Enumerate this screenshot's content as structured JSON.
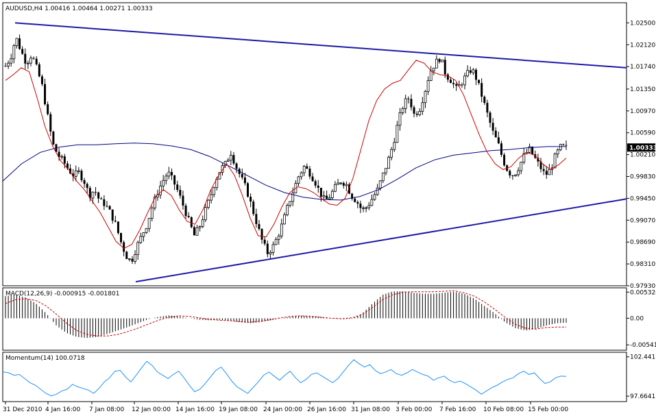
{
  "chart_data": [
    {
      "type": "candlestick",
      "symbol_header": "AUDUSD,H4  1.00416 1.00464 1.00271 1.00333",
      "last_price": 1.00333,
      "ylim": [
        0.9793,
        1.0285
      ],
      "y_ticks": [
        "1.02500",
        "1.02120",
        "1.01740",
        "1.01350",
        "1.00970",
        "1.00590",
        "1.00210",
        "0.99830",
        "0.99450",
        "0.99070",
        "0.98690",
        "0.98310",
        "0.97930"
      ],
      "x_ticks": [
        "31 Dec 2010",
        "4 Jan 16:00",
        "7 Jan 08:00",
        "12 Jan 00:00",
        "14 Jan 16:00",
        "19 Jan 08:00",
        "24 Jan 00:00",
        "26 Jan 16:00",
        "31 Jan 08:00",
        "3 Feb 00:00",
        "7 Feb 16:00",
        "10 Feb 08:00",
        "15 Feb 00:00"
      ],
      "close_path": [
        1.0175,
        1.019,
        1.0225,
        1.02,
        1.018,
        1.0195,
        1.017,
        1.014,
        1.009,
        1.004,
        1.002,
        1.001,
        0.9995,
        0.9985,
        0.999,
        0.9975,
        0.995,
        0.996,
        0.994,
        0.9935,
        0.992,
        0.99,
        0.987,
        0.9845,
        0.9835,
        0.986,
        0.988,
        0.99,
        0.993,
        0.9955,
        0.9975,
        0.999,
        0.9975,
        0.9955,
        0.993,
        0.9905,
        0.988,
        0.9895,
        0.992,
        0.9945,
        0.9975,
        0.9995,
        1.0005,
        1.0025,
        1.0,
        0.998,
        0.996,
        0.993,
        0.99,
        0.987,
        0.985,
        0.986,
        0.988,
        0.9905,
        0.9935,
        0.996,
        0.9985,
        1.0,
        0.999,
        0.9975,
        0.9955,
        0.994,
        0.995,
        0.9965,
        0.9975,
        0.997,
        0.995,
        0.994,
        0.9925,
        0.993,
        0.9945,
        0.996,
        0.9985,
        1.001,
        1.004,
        1.008,
        1.011,
        1.012,
        1.009,
        1.01,
        1.013,
        1.0165,
        1.018,
        1.019,
        1.016,
        1.015,
        1.0135,
        1.0145,
        1.016,
        1.017,
        1.015,
        1.012,
        1.009,
        1.006,
        1.004,
        1.001,
        0.999,
        0.9985,
        1.0,
        1.002,
        1.003,
        1.0015,
        1.0,
        0.9985,
        0.9995,
        1.002,
        1.0035,
        1.0033
      ],
      "ma_fast_path": [
        1.015,
        1.016,
        1.0172,
        1.0165,
        1.012,
        1.007,
        1.0035,
        1.001,
        0.9995,
        0.9975,
        0.996,
        0.994,
        0.992,
        0.9895,
        0.987,
        0.9858,
        0.9865,
        0.989,
        0.992,
        0.9948,
        0.996,
        0.995,
        0.9925,
        0.9905,
        0.99,
        0.9925,
        0.996,
        0.9985,
        1.0005,
        0.9985,
        0.995,
        0.991,
        0.988,
        0.9878,
        0.99,
        0.993,
        0.9955,
        0.9965,
        0.9962,
        0.9955,
        0.9945,
        0.9935,
        0.9933,
        0.9945,
        0.998,
        1.003,
        1.008,
        1.0115,
        1.0135,
        1.0145,
        1.015,
        1.0168,
        1.0185,
        1.018,
        1.0165,
        1.016,
        1.0158,
        1.015,
        1.0125,
        1.009,
        1.0055,
        1.0025,
        1.0005,
        0.9995,
        1.0,
        1.0015,
        1.0025,
        1.002,
        1.0005,
        0.9995,
        1.0003,
        1.0015
      ],
      "ma_slow_path": [
        0.9975,
        1.0005,
        1.0025,
        1.0034,
        1.0038,
        1.0038,
        1.004,
        1.0041,
        1.004,
        1.0036,
        1.003,
        1.0018,
        1.0002,
        0.9985,
        0.9968,
        0.9955,
        0.9947,
        0.9943,
        0.9942,
        0.9948,
        0.996,
        0.9978,
        0.9998,
        1.0012,
        1.002,
        1.0024,
        1.0028,
        1.003,
        1.0033,
        1.0035,
        1.0035
      ],
      "trendlines": [
        {
          "name": "upper",
          "from": 1.025,
          "to": 1.0172
        },
        {
          "name": "lower",
          "from": 0.98,
          "to": 0.9944
        }
      ],
      "colors": {
        "up": "#000000",
        "down": "#000000",
        "ma_fast": "#cc0000",
        "ma_slow": "#000080",
        "trend": "#1a1aa6",
        "price_badge": "#000000"
      }
    },
    {
      "type": "bar",
      "title": "MACD(12,26,9) -0.000915 -0.001801",
      "ylim": [
        -0.0065,
        0.0062
      ],
      "y_ticks": [
        "0.005324",
        "0.00",
        "-0.00541"
      ],
      "histogram": [
        0.0045,
        0.0048,
        0.0042,
        0.003,
        0.001,
        -0.0015,
        -0.003,
        -0.0038,
        -0.004,
        -0.0038,
        -0.0032,
        -0.0025,
        -0.0018,
        -0.001,
        -0.0002,
        0.0003,
        0.0006,
        0.0004,
        0.0,
        -0.0003,
        -0.0004,
        -0.0003,
        -0.0005,
        -0.0008,
        -0.001,
        -0.0008,
        -0.0004,
        0.0,
        0.0003,
        0.0005,
        0.0005,
        0.0003,
        0.0,
        -0.0002,
        -0.0001,
        0.001,
        0.003,
        0.0048,
        0.0055,
        0.0055,
        0.0052,
        0.005,
        0.005,
        0.0052,
        0.0054,
        0.005,
        0.004,
        0.0025,
        0.001,
        -0.0008,
        -0.002,
        -0.0025,
        -0.0022,
        -0.0015,
        -0.001,
        -0.0009
      ],
      "signal": [
        0.003,
        0.0038,
        0.004,
        0.0036,
        0.0025,
        0.0008,
        -0.001,
        -0.0025,
        -0.0033,
        -0.0036,
        -0.0036,
        -0.0033,
        -0.0027,
        -0.002,
        -0.0012,
        -0.0004,
        0.0002,
        0.0005,
        0.0004,
        0.0001,
        -0.0002,
        -0.0004,
        -0.0005,
        -0.0007,
        -0.0008,
        -0.0006,
        -0.0003,
        0.0001,
        0.0004,
        0.0005,
        0.0004,
        0.0002,
        0.0,
        -0.0001,
        0.0001,
        0.0008,
        0.0022,
        0.0038,
        0.0048,
        0.0053,
        0.0054,
        0.0054,
        0.0054,
        0.0055,
        0.0056,
        0.0052,
        0.0045,
        0.0033,
        0.0018,
        0.0002,
        -0.0012,
        -0.002,
        -0.0022,
        -0.0019,
        -0.0018,
        -0.0018
      ],
      "colors": {
        "histogram": "#000000",
        "signal": "#cc0000"
      }
    },
    {
      "type": "line",
      "title": "Momentum(14) 100.0718",
      "ylim": [
        97.0,
        103.0
      ],
      "y_ticks": [
        "102.441",
        "97.6641"
      ],
      "values": [
        100.6,
        100.5,
        100.2,
        100.3,
        99.8,
        99.3,
        99.0,
        98.5,
        98.0,
        97.7,
        97.9,
        98.3,
        98.5,
        99.1,
        98.8,
        98.6,
        98.4,
        98.0,
        98.6,
        99.4,
        99.9,
        100.7,
        100.8,
        100.0,
        99.4,
        100.2,
        101.1,
        101.9,
        101.4,
        100.6,
        100.2,
        99.8,
        100.3,
        100.7,
        99.9,
        99.0,
        98.2,
        98.5,
        99.2,
        100.0,
        100.8,
        101.2,
        100.4,
        99.5,
        98.8,
        98.4,
        98.0,
        98.7,
        99.4,
        100.2,
        100.6,
        100.1,
        99.6,
        100.2,
        100.7,
        99.9,
        99.3,
        99.7,
        100.3,
        100.5,
        100.1,
        99.7,
        99.3,
        99.8,
        100.6,
        101.4,
        102.1,
        101.6,
        101.2,
        101.5,
        100.8,
        100.4,
        100.6,
        100.9,
        100.4,
        100.2,
        100.5,
        100.9,
        100.6,
        100.3,
        100.1,
        99.6,
        99.9,
        100.1,
        99.6,
        99.3,
        99.5,
        99.2,
        98.8,
        98.4,
        97.9,
        98.3,
        98.7,
        99.0,
        99.4,
        99.7,
        99.9,
        100.4,
        100.7,
        100.3,
        100.5,
        99.8,
        99.2,
        99.4,
        99.9,
        100.1,
        100.07
      ],
      "colors": {
        "line": "#1e90ff"
      }
    }
  ]
}
